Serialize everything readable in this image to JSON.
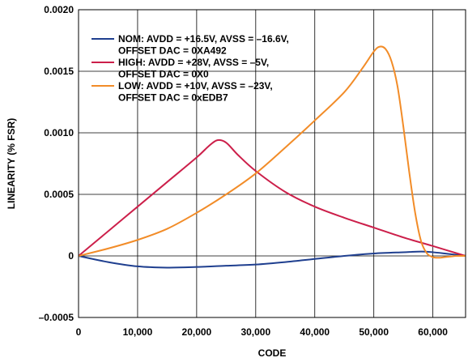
{
  "chart_data": {
    "type": "line",
    "title": "",
    "xlabel": "CODE",
    "ylabel": "LINEARITY (% FSR)",
    "xlim": [
      0,
      65535
    ],
    "ylim": [
      -0.0005,
      0.002
    ],
    "grid": true,
    "legend_position": "top-left",
    "x_ticks": [
      0,
      10000,
      20000,
      30000,
      40000,
      50000,
      60000
    ],
    "x_tick_labels": [
      "0",
      "10,000",
      "20,000",
      "30,000",
      "40,000",
      "50,000",
      "60,000"
    ],
    "y_ticks": [
      -0.0005,
      0,
      0.0005,
      0.001,
      0.0015,
      0.002
    ],
    "y_tick_labels": [
      "–0.0005",
      "0",
      "0.0005",
      "0.0010",
      "0.0015",
      "0.0020"
    ],
    "series": [
      {
        "name": "NOM: AVDD = +16.5V, AVSS = –16.6V, OFFSET DAC = 0XA492",
        "legend_lines": [
          "NOM: AVDD = +16.5V, AVSS = –16.6V,",
          "OFFSET DAC = 0XA492"
        ],
        "color": "#1f3f8f",
        "x": [
          0,
          5000,
          10000,
          15000,
          20000,
          25000,
          30000,
          35000,
          40000,
          45000,
          50000,
          55000,
          58000,
          60000,
          62000,
          65535
        ],
        "y": [
          0,
          -5e-05,
          -8.5e-05,
          -9.5e-05,
          -9e-05,
          -8e-05,
          -7e-05,
          -5e-05,
          -2.5e-05,
          0,
          2e-05,
          3e-05,
          3.5e-05,
          3e-05,
          2e-05,
          0
        ]
      },
      {
        "name": "HIGH: AVDD = +28V, AVSS = –5V, OFFSET DAC = 0X0",
        "legend_lines": [
          "HIGH: AVDD = +28V, AVSS = –5V,",
          "OFFSET DAC = 0X0"
        ],
        "color": "#cc1f4a",
        "x": [
          0,
          5000,
          10000,
          15000,
          20000,
          22000,
          23500,
          25000,
          27000,
          30000,
          35000,
          40000,
          45000,
          50000,
          55000,
          60000,
          65535
        ],
        "y": [
          0,
          0.0002,
          0.0004,
          0.0006,
          0.0008,
          0.00089,
          0.00094,
          0.00092,
          0.00082,
          0.00069,
          0.00052,
          0.0004,
          0.00031,
          0.00023,
          0.00015,
          8e-05,
          0
        ]
      },
      {
        "name": "LOW: AVDD = +10V, AVSS = –23V, OFFSET DAC = 0xEDB7",
        "legend_lines": [
          "LOW: AVDD = +10V, AVSS = –23V,",
          "OFFSET DAC = 0xEDB7"
        ],
        "color": "#f28c28",
        "x": [
          0,
          5000,
          10000,
          15000,
          20000,
          25000,
          30000,
          35000,
          40000,
          45000,
          48000,
          50000,
          51000,
          52000,
          53000,
          54000,
          55000,
          56000,
          57000,
          58000,
          59000,
          60000,
          61000,
          62000,
          63000,
          64000,
          65535
        ],
        "y": [
          0,
          6e-05,
          0.00013,
          0.00022,
          0.00035,
          0.0005,
          0.00067,
          0.00088,
          0.0011,
          0.00133,
          0.00152,
          0.00166,
          0.0017,
          0.00168,
          0.00158,
          0.00138,
          0.00105,
          0.00068,
          0.00035,
          0.00012,
          2e-05,
          -1e-05,
          -1.5e-05,
          -1e-05,
          -5e-06,
          0,
          0
        ]
      }
    ]
  }
}
